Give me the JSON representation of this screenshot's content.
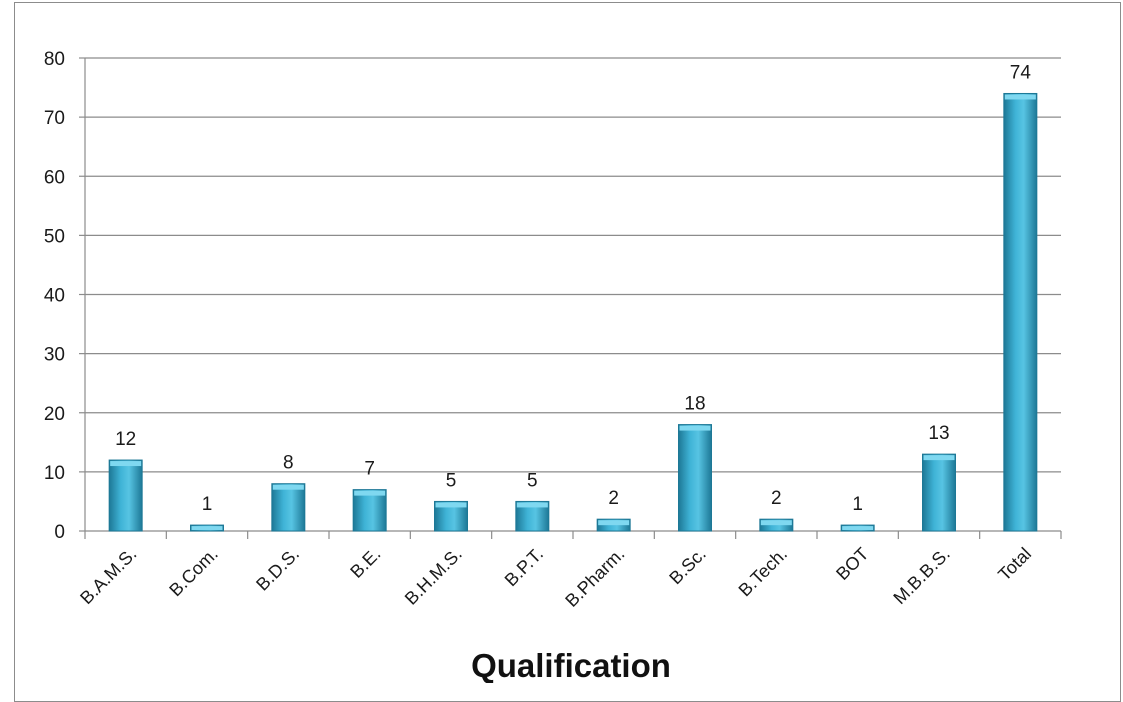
{
  "chart_data": {
    "type": "bar",
    "categories": [
      "B.A.M.S.",
      "B.Com.",
      "B.D.S.",
      "B.E.",
      "B.H.M.S.",
      "B.P.T.",
      "B.Pharm.",
      "B.Sc.",
      "B.Tech.",
      "BOT",
      "M.B.B.S.",
      "Total"
    ],
    "values": [
      12,
      1,
      8,
      7,
      5,
      5,
      2,
      18,
      2,
      1,
      13,
      74
    ],
    "data_labels": [
      "12",
      "1",
      "8",
      "7",
      "5",
      "5",
      "2",
      "18",
      "2",
      "1",
      "13",
      "74"
    ],
    "xlabel": "Qualification",
    "ylabel": "",
    "ylim": [
      0,
      80
    ],
    "yticks": [
      "0",
      "10",
      "20",
      "30",
      "40",
      "50",
      "60",
      "70",
      "80"
    ],
    "grid": "horizontal",
    "legend": "none",
    "colors": {
      "bar_fill": "#3fb3d6",
      "bar_light": "#7fd8f0",
      "bar_dark": "#1d7896",
      "grid": "#8c8c8c"
    }
  }
}
